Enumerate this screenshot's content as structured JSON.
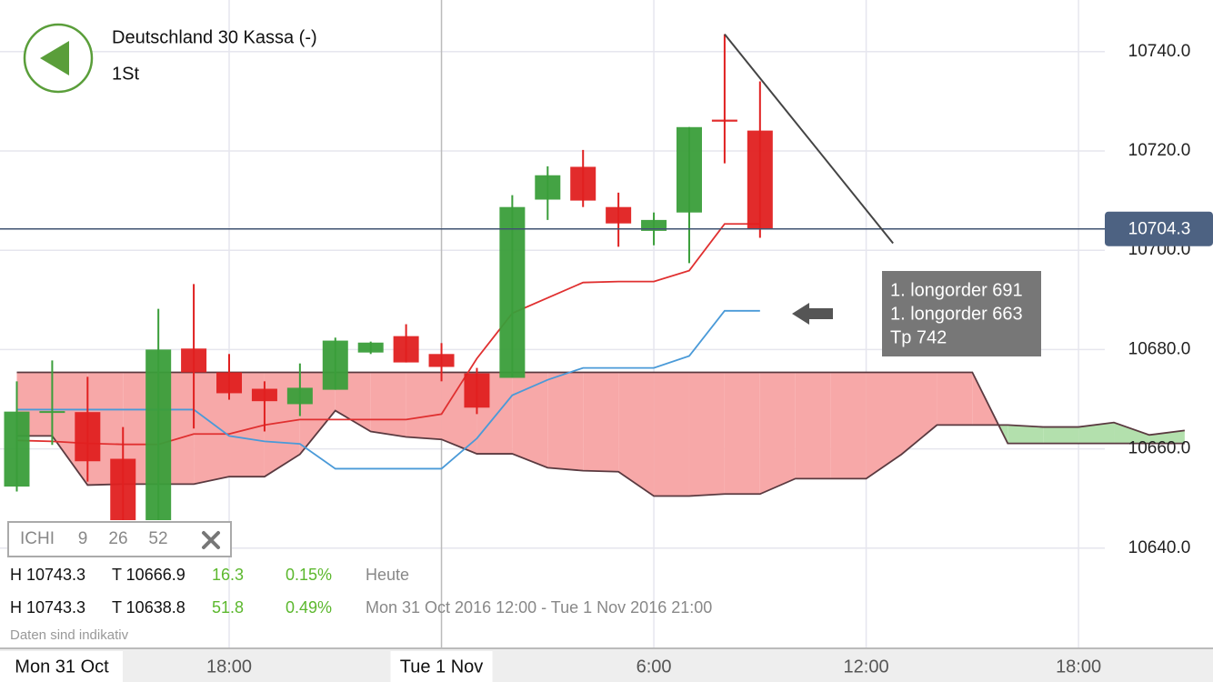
{
  "header": {
    "title": "Deutschland 30 Kassa (-)",
    "interval": "1St"
  },
  "chart_data": {
    "type": "candlestick",
    "xlim": [
      -0.475,
      33.8
    ],
    "ylim": [
      10620,
      10750.4
    ],
    "yticks": [
      {
        "value": 10640,
        "label": "10640.0"
      },
      {
        "value": 10660,
        "label": "10660.0"
      },
      {
        "value": 10680,
        "label": "10680.0"
      },
      {
        "value": 10700,
        "label": "10700.0"
      },
      {
        "value": 10720,
        "label": "10720.0"
      },
      {
        "value": 10740,
        "label": "10740.0"
      }
    ],
    "xticks": [
      {
        "value": 6,
        "label": "18:00"
      },
      {
        "value": 12,
        "label": "Tue 1 Nov"
      },
      {
        "value": 18,
        "label": "6:00"
      },
      {
        "value": 24,
        "label": "12:00"
      },
      {
        "value": 30,
        "label": "18:00"
      }
    ],
    "date_label": "Mon 31 Oct",
    "grid": true,
    "up_color": "#3a9e3a",
    "down_color": "#e02020",
    "candles": {
      "x": [
        0,
        1,
        2,
        3,
        4,
        5,
        6,
        7,
        8,
        9,
        10,
        11,
        12,
        13,
        14,
        15,
        16,
        17,
        18,
        19,
        20,
        21
      ],
      "open": [
        10652.4,
        10667.5,
        10667.4,
        10658.0,
        10642.5,
        10680.2,
        10675.4,
        10672.1,
        10669.0,
        10671.9,
        10679.4,
        10682.7,
        10679.1,
        10675.2,
        10674.3,
        10710.2,
        10716.8,
        10708.7,
        10703.9,
        10707.6,
        10726.3,
        10724.1
      ],
      "high": [
        10673.6,
        10677.8,
        10674.5,
        10664.4,
        10688.2,
        10693.2,
        10679.1,
        10673.6,
        10677.2,
        10682.4,
        10681.6,
        10685.1,
        10681.3,
        10676.3,
        10711.1,
        10716.9,
        10720.2,
        10711.6,
        10707.6,
        10724.8,
        10743.5,
        10734.0
      ],
      "low": [
        10651.4,
        10660.8,
        10653.4,
        10640.6,
        10640.6,
        10664.1,
        10669.9,
        10663.5,
        10666.6,
        10671.9,
        10679.1,
        10677.4,
        10673.6,
        10667.0,
        10674.3,
        10706.1,
        10708.7,
        10700.7,
        10701.0,
        10697.4,
        10717.5,
        10702.5
      ],
      "close": [
        10667.5,
        10667.6,
        10657.5,
        10642.5,
        10680.0,
        10675.4,
        10671.2,
        10669.6,
        10672.3,
        10681.8,
        10681.4,
        10677.4,
        10676.5,
        10668.3,
        10708.7,
        10715.1,
        10710.0,
        10705.4,
        10706.1,
        10724.8,
        10725.9,
        10704.3
      ]
    },
    "series": [
      {
        "color": "#e03030",
        "x": [
          0,
          1,
          2,
          3,
          4,
          5,
          6,
          7,
          8,
          9,
          10,
          11,
          12,
          13,
          14,
          15,
          16,
          17,
          18,
          19,
          20,
          21
        ],
        "values": [
          10661.7,
          10661.5,
          10661.1,
          10660.9,
          10660.9,
          10663.0,
          10663.0,
          10664.8,
          10665.9,
          10665.9,
          10665.9,
          10665.9,
          10667.0,
          10678.2,
          10687.3,
          10690.4,
          10693.5,
          10693.7,
          10693.7,
          10695.9,
          10705.3,
          10705.3
        ]
      },
      {
        "color": "#4a9ad8",
        "x": [
          0,
          1,
          2,
          3,
          4,
          5,
          6,
          7,
          8,
          9,
          10,
          11,
          12,
          13,
          14,
          15,
          16,
          17,
          18,
          19,
          20,
          21
        ],
        "values": [
          10667.9,
          10667.9,
          10667.9,
          10667.9,
          10667.9,
          10667.9,
          10662.6,
          10661.5,
          10661.0,
          10656.0,
          10656.0,
          10656.0,
          10656.0,
          10662.1,
          10670.8,
          10673.9,
          10676.3,
          10676.3,
          10676.3,
          10678.7,
          10687.8,
          10687.8
        ]
      }
    ],
    "cloud": {
      "color": "#5a3a40",
      "fill_above": "#f7a8a8",
      "fill_below": "#b3e0ad",
      "x": [
        0,
        1,
        2,
        3,
        4,
        5,
        6,
        7,
        8,
        9,
        10,
        11,
        12,
        13,
        14,
        15,
        16,
        17,
        18,
        19,
        20,
        21,
        22,
        23,
        24,
        25,
        26,
        27,
        28,
        29,
        30,
        31,
        32,
        33
      ],
      "span_a": [
        10675.4,
        10675.4,
        10675.4,
        10675.4,
        10675.4,
        10675.4,
        10675.4,
        10675.4,
        10675.4,
        10675.4,
        10675.4,
        10675.4,
        10675.4,
        10675.4,
        10675.4,
        10675.4,
        10675.4,
        10675.4,
        10675.4,
        10675.4,
        10675.4,
        10675.4,
        10675.4,
        10675.4,
        10675.4,
        10675.4,
        10675.4,
        10675.4,
        10661.1,
        10661.1,
        10661.1,
        10661.1,
        10661.1,
        10661.1
      ],
      "span_b": [
        10662.6,
        10662.6,
        10652.7,
        10652.9,
        10652.9,
        10652.9,
        10654.4,
        10654.4,
        10658.9,
        10667.7,
        10663.5,
        10662.4,
        10661.9,
        10659.0,
        10659.0,
        10656.2,
        10655.6,
        10655.4,
        10650.5,
        10650.5,
        10650.9,
        10650.9,
        10654.0,
        10654.0,
        10654.0,
        10658.9,
        10664.8,
        10664.8,
        10664.8,
        10664.4,
        10664.4,
        10665.3,
        10662.8,
        10663.7
      ]
    },
    "trend_line": {
      "color": "#444444",
      "x": [
        20,
        24.76
      ],
      "values": [
        10743.5,
        10701.4
      ]
    },
    "last_price": 10704.3,
    "note": [
      "1. longorder 691",
      "1. longorder 663",
      "Tp 742"
    ]
  },
  "indicator": {
    "name": "ICHI",
    "params": [
      9,
      26,
      52
    ]
  },
  "stats": [
    [
      "H 10743.3",
      "T 10666.9",
      "16.3",
      "0.15%",
      "Heute"
    ],
    [
      "H 10743.3",
      "T 10638.8",
      "51.8",
      "0.49%",
      "Mon 31 Oct 2016 12:00 - Tue 1 Nov 2016 21:00"
    ]
  ],
  "disclaimer": "Daten sind indikativ"
}
